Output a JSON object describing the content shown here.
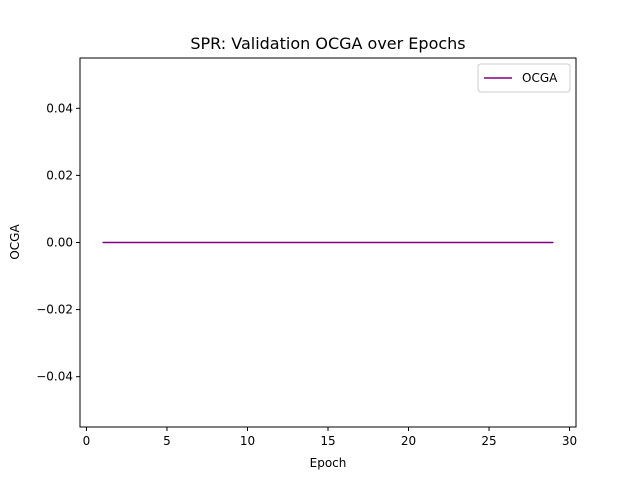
{
  "chart_data": {
    "type": "line",
    "title": "SPR: Validation OCGA over Epochs",
    "xlabel": "Epoch",
    "ylabel": "OCGA",
    "xlim": [
      -0.4,
      30.4
    ],
    "ylim": [
      -0.055,
      0.055
    ],
    "x_ticks": [
      0,
      5,
      10,
      15,
      20,
      25,
      30
    ],
    "x_tick_labels": [
      "0",
      "5",
      "10",
      "15",
      "20",
      "25",
      "30"
    ],
    "y_ticks": [
      -0.04,
      -0.02,
      0.0,
      0.02,
      0.04
    ],
    "y_tick_labels": [
      "−0.04",
      "−0.02",
      "0.00",
      "0.02",
      "0.04"
    ],
    "grid": false,
    "legend_position": "top-right",
    "series": [
      {
        "name": "OCGA",
        "color": "#800080",
        "x": [
          1,
          2,
          3,
          4,
          5,
          6,
          7,
          8,
          9,
          10,
          11,
          12,
          13,
          14,
          15,
          16,
          17,
          18,
          19,
          20,
          21,
          22,
          23,
          24,
          25,
          26,
          27,
          28,
          29
        ],
        "values": [
          0,
          0,
          0,
          0,
          0,
          0,
          0,
          0,
          0,
          0,
          0,
          0,
          0,
          0,
          0,
          0,
          0,
          0,
          0,
          0,
          0,
          0,
          0,
          0,
          0,
          0,
          0,
          0,
          0
        ]
      }
    ]
  }
}
